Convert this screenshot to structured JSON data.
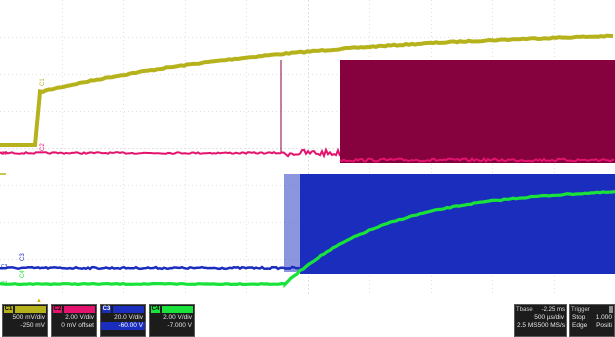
{
  "colors": {
    "c1": "#b5b21c",
    "c2": "#e3136e",
    "c3": "#1a2dbd",
    "c4": "#19e33a",
    "c2_fill": "#86023f",
    "grid": "#c8c8c8"
  },
  "waveform_labels": {
    "top": [
      "C1",
      "C2",
      "C3",
      "C4"
    ],
    "left_markers": [
      "C2",
      "C3",
      "C4"
    ]
  },
  "channels": [
    {
      "tag": "C1",
      "lines": [
        "500 mV/div",
        "-250 mV"
      ]
    },
    {
      "tag": "C2",
      "lines": [
        "2.00 V/div",
        "0 mV offset"
      ]
    },
    {
      "tag": "C3",
      "lines": [
        "20.0 V/div",
        "-60.00 V"
      ]
    },
    {
      "tag": "C4",
      "lines": [
        "2.00 V/div",
        "-7.000 V"
      ]
    }
  ],
  "timebase": {
    "title": "Tbase",
    "value": "-2.25 ms",
    "rows": [
      [
        "",
        "500 µs/div"
      ],
      [
        "2.5 MS",
        "500 MS/s"
      ]
    ]
  },
  "trigger": {
    "title": "Trigger",
    "rows": [
      [
        "Stop",
        "1.000"
      ],
      [
        "Edge",
        "Positi"
      ]
    ]
  },
  "trigger_level_marker": "▲"
}
